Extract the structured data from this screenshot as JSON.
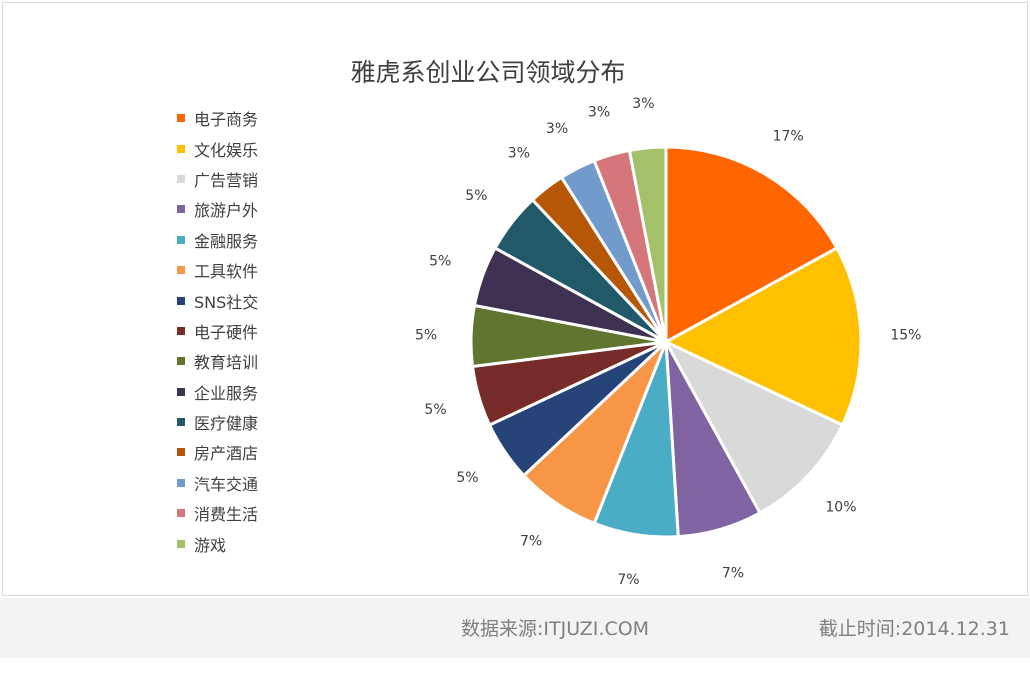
{
  "chart_data": {
    "type": "pie",
    "title": "雅虎系创业公司领域分布",
    "legend_position": "left",
    "categories": [
      "电子商务",
      "文化娱乐",
      "广告营销",
      "旅游户外",
      "金融服务",
      "工具软件",
      "SNS社交",
      "电子硬件",
      "教育培训",
      "企业服务",
      "医疗健康",
      "房产酒店",
      "汽车交通",
      "消费生活",
      "游戏"
    ],
    "values": [
      17,
      15,
      10,
      7,
      7,
      7,
      5,
      5,
      5,
      5,
      5,
      3,
      3,
      3,
      3
    ],
    "labels": [
      "17%",
      "15%",
      "10%",
      "7%",
      "7%",
      "7%",
      "5%",
      "5%",
      "5%",
      "5%",
      "5%",
      "3%",
      "3%",
      "3%",
      "3%"
    ],
    "colors": [
      "#ff6600",
      "#ffc000",
      "#d9d9d9",
      "#8064a2",
      "#4bacc6",
      "#f79646",
      "#264478",
      "#772c2a",
      "#5f7530",
      "#3f3151",
      "#215968",
      "#b65708",
      "#729aca",
      "#d4767a",
      "#a5c06a"
    ]
  },
  "footer": {
    "source": "数据来源:ITJUZI.COM",
    "date": "截止时间:2014.12.31"
  }
}
